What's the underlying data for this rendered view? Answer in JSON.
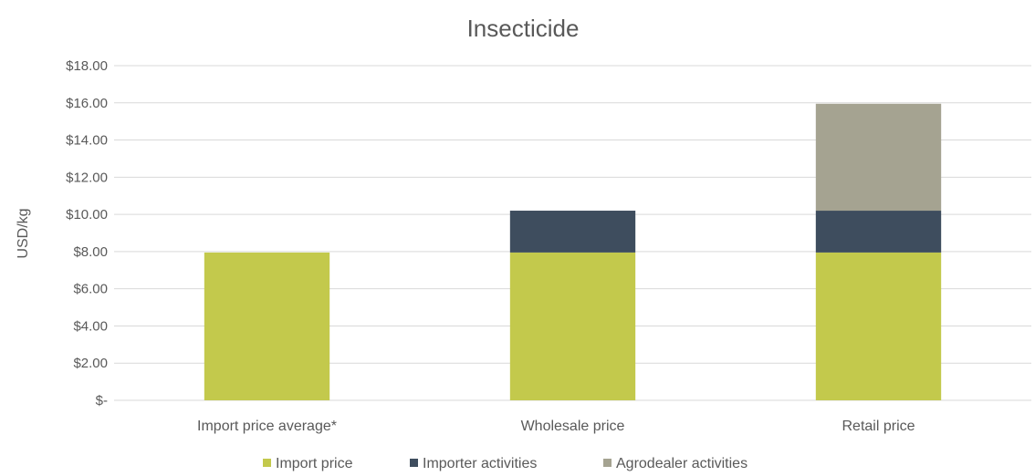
{
  "chart_data": {
    "type": "bar",
    "stacked": true,
    "title": "Insecticide",
    "xlabel": "",
    "ylabel": "USD/kg",
    "categories": [
      "Import price average*",
      "Wholesale price",
      "Retail price"
    ],
    "series": [
      {
        "name": "Import price",
        "values": [
          7.95,
          7.95,
          7.95
        ],
        "color": "#c3c94c"
      },
      {
        "name": "Importer activities",
        "values": [
          0,
          2.25,
          2.25
        ],
        "color": "#3e4d5e"
      },
      {
        "name": "Agrodealer activities",
        "values": [
          0,
          0,
          5.75
        ],
        "color": "#a5a391"
      }
    ],
    "ylim": [
      0,
      18
    ],
    "yticks": [
      0,
      2,
      4,
      6,
      8,
      10,
      12,
      14,
      16,
      18
    ],
    "ytick_labels": [
      "$-",
      "$2.00",
      "$4.00",
      "$6.00",
      "$8.00",
      "$10.00",
      "$12.00",
      "$14.00",
      "$16.00",
      "$18.00"
    ],
    "grid": true,
    "legend_position": "bottom"
  }
}
